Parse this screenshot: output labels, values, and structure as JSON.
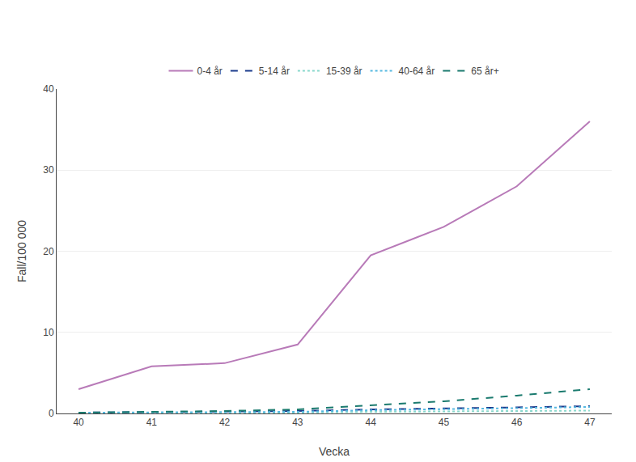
{
  "chart_data": {
    "type": "line",
    "x": [
      40,
      41,
      42,
      43,
      44,
      45,
      46,
      47
    ],
    "series": [
      {
        "name": "0-4 år",
        "color": "#b87ab8",
        "line_style": "solid",
        "values": [
          3.0,
          5.8,
          6.2,
          8.5,
          19.5,
          23.0,
          28.0,
          36.0
        ]
      },
      {
        "name": "5-14 år",
        "color": "#1a3a8c",
        "line_style": "dashed",
        "values": [
          0.1,
          0.15,
          0.2,
          0.3,
          0.5,
          0.6,
          0.75,
          0.9
        ]
      },
      {
        "name": "15-39 år",
        "color": "#88d8cc",
        "line_style": "dotted",
        "values": [
          0.05,
          0.07,
          0.08,
          0.1,
          0.2,
          0.25,
          0.3,
          0.35
        ]
      },
      {
        "name": "40-64 år",
        "color": "#55b8e0",
        "line_style": "dotted",
        "values": [
          0.1,
          0.12,
          0.15,
          0.2,
          0.4,
          0.5,
          0.65,
          0.8
        ]
      },
      {
        "name": "65 år+",
        "color": "#1a7a6e",
        "line_style": "dashed",
        "values": [
          0.1,
          0.2,
          0.3,
          0.5,
          1.0,
          1.5,
          2.2,
          3.0
        ]
      }
    ],
    "xlabel": "Vecka",
    "ylabel": "Fall/100 000",
    "xlim": [
      39.7,
      47.3
    ],
    "xticks": [
      40,
      41,
      42,
      43,
      44,
      45,
      46,
      47
    ],
    "ylim": [
      0,
      40
    ],
    "yticks": [
      0,
      10,
      20,
      30,
      40
    ],
    "grid": true,
    "legend": "top"
  }
}
